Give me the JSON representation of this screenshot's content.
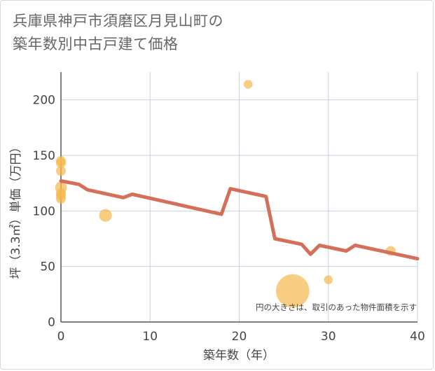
{
  "chart_data": {
    "type": "scatter",
    "title_lines": [
      "兵庫県神戸市須磨区月見山町の",
      "築年数別中古戸建て価格"
    ],
    "xlabel": "築年数（年）",
    "ylabel": "坪（3.3㎡）単価（万円）",
    "xlim": [
      0,
      40
    ],
    "ylim": [
      0,
      225
    ],
    "xticks": [
      0,
      10,
      20,
      30,
      40
    ],
    "yticks": [
      0,
      50,
      100,
      150,
      200
    ],
    "grid": true,
    "note": "円の大きさは、取引のあった物件面積を示す",
    "colors": {
      "bubble": "#f5b951",
      "line": "#d4705a",
      "grid": "#c6d2de",
      "axis": "#555555"
    },
    "points": [
      {
        "x": 0,
        "y": 145,
        "size": 1
      },
      {
        "x": 0,
        "y": 143,
        "size": 1
      },
      {
        "x": 0,
        "y": 136,
        "size": 1
      },
      {
        "x": 0,
        "y": 121,
        "size": 1.2
      },
      {
        "x": 0,
        "y": 116,
        "size": 1
      },
      {
        "x": 0,
        "y": 114,
        "size": 1
      },
      {
        "x": 0,
        "y": 111,
        "size": 1
      },
      {
        "x": 5,
        "y": 96,
        "size": 1.3
      },
      {
        "x": 21,
        "y": 214,
        "size": 0.9
      },
      {
        "x": 26,
        "y": 28,
        "size": 3.4
      },
      {
        "x": 30,
        "y": 38,
        "size": 0.9
      },
      {
        "x": 37,
        "y": 64,
        "size": 1
      }
    ],
    "trend": {
      "x": [
        0,
        2,
        3,
        7,
        8,
        18,
        19,
        23,
        24,
        27,
        28,
        29,
        32,
        33,
        40
      ],
      "y": [
        127,
        124,
        119,
        112,
        115,
        97,
        120,
        113,
        75,
        70,
        61,
        69,
        64,
        69,
        57
      ]
    }
  }
}
